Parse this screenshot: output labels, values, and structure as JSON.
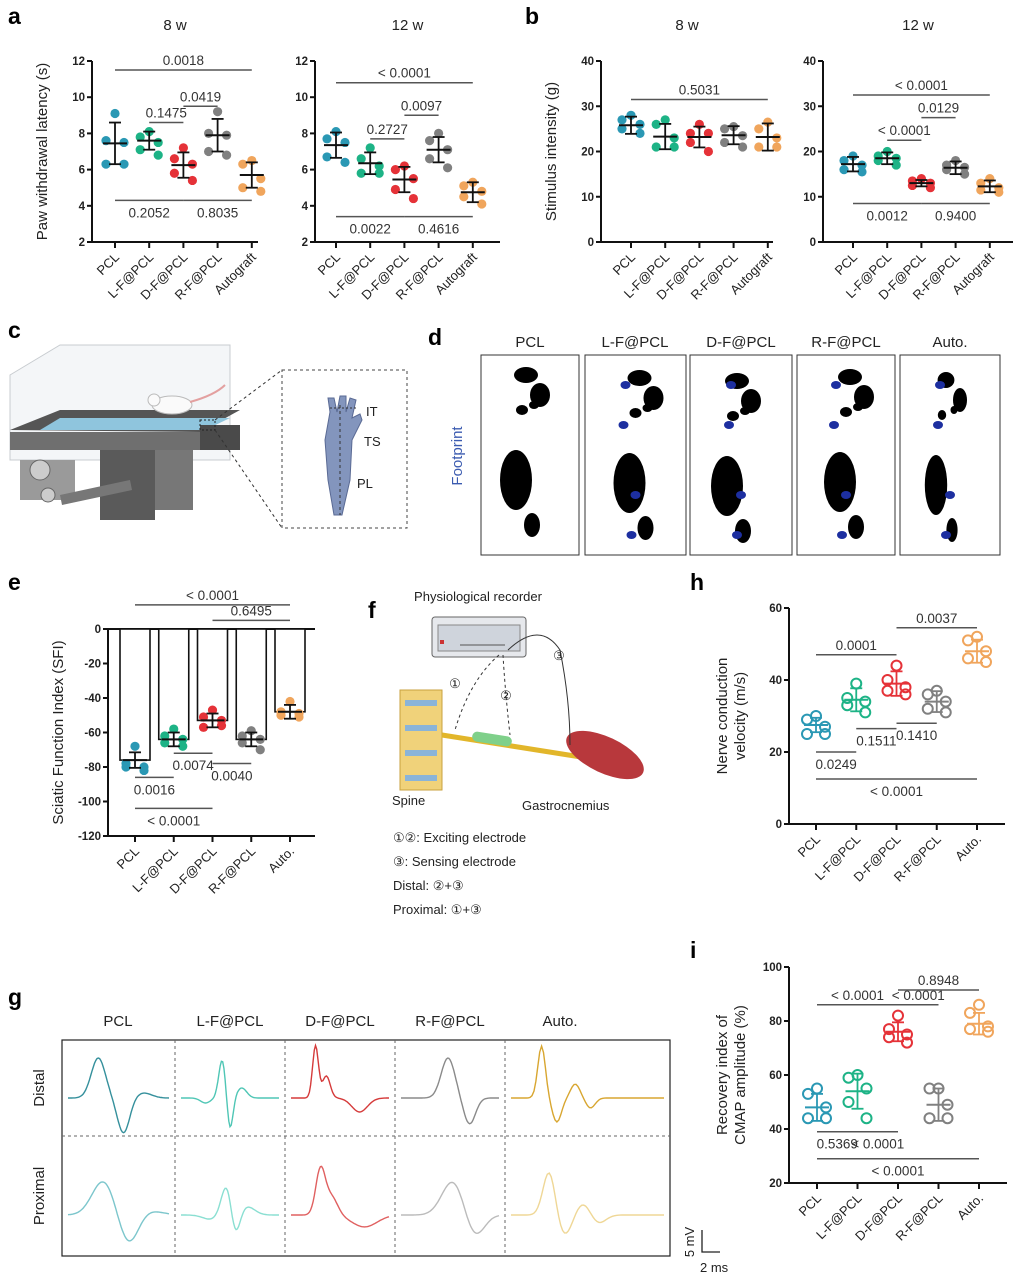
{
  "colors": {
    "PCL": "#2a98b4",
    "L-F@PCL": "#1db386",
    "D-F@PCL": "#e53238",
    "R-F@PCL": "#808080",
    "Autograft": "#f0a55c"
  },
  "panel_labels": {
    "a": "a",
    "b": "b",
    "c": "c",
    "d": "d",
    "e": "e",
    "f": "f",
    "g": "g",
    "h": "h",
    "i": "i"
  },
  "panel_c": {
    "labels": [
      "IT",
      "TS",
      "PL"
    ]
  },
  "panel_d": {
    "row_label": "Footprint",
    "titles": [
      "PCL",
      "L-F@PCL",
      "D-F@PCL",
      "R-F@PCL",
      "Auto."
    ]
  },
  "panel_f": {
    "device": "Physiological recorder",
    "electrodes": [
      "①",
      "②",
      "③"
    ],
    "spine": "Spine",
    "muscle": "Gastrocnemius",
    "legend": [
      "①②: Exciting electrode",
      "③: Sensing electrode",
      "Distal: ②+③",
      "Proximal: ①+③"
    ]
  },
  "panel_g": {
    "titles": [
      "PCL",
      "L-F@PCL",
      "D-F@PCL",
      "R-F@PCL",
      "Auto."
    ],
    "rows": [
      "Distal",
      "Proximal"
    ],
    "scale_v": "5 mV",
    "scale_h": "2 ms"
  },
  "chart_data": [
    {
      "id": "a8",
      "panel": "a",
      "type": "scatter",
      "title": "8 w",
      "ylabel": [
        "Paw withdrawal latency (s)"
      ],
      "ylim": [
        2,
        12
      ],
      "yticks": [
        2,
        4,
        6,
        8,
        10,
        12
      ],
      "categories": [
        "PCL",
        "L-F@PCL",
        "D-F@PCL",
        "R-F@PCL",
        "Autograft"
      ],
      "points": [
        [
          9.1,
          7.6,
          7.5,
          6.3,
          6.3
        ],
        [
          8.1,
          7.8,
          7.5,
          7.1,
          6.8
        ],
        [
          7.2,
          6.6,
          6.3,
          5.8,
          5.4
        ],
        [
          9.2,
          8.0,
          7.9,
          7.0,
          6.8
        ],
        [
          6.5,
          6.3,
          5.5,
          5.0,
          4.8
        ]
      ],
      "mean": [
        7.45,
        7.6,
        6.25,
        7.9,
        5.7
      ],
      "sd": [
        1.15,
        0.5,
        0.7,
        0.9,
        0.7
      ],
      "brackets": [
        {
          "from": 0,
          "to": 4,
          "y": 11.5,
          "p": "0.0018",
          "pos": "above"
        },
        {
          "from": 2,
          "to": 3,
          "y": 9.5,
          "p": "0.0419",
          "pos": "above"
        },
        {
          "from": 1,
          "to": 2,
          "y": 8.6,
          "p": "0.1475",
          "pos": "above"
        },
        {
          "from": 0,
          "to": 2,
          "y": 4.3,
          "p": "0.2052",
          "pos": "below"
        },
        {
          "from": 2,
          "to": 4,
          "y": 4.3,
          "p": "0.8035",
          "pos": "below"
        }
      ]
    },
    {
      "id": "a12",
      "panel": "a",
      "type": "scatter",
      "title": "12 w",
      "ylabel": [],
      "ylim": [
        2,
        12
      ],
      "yticks": [
        2,
        4,
        6,
        8,
        10,
        12
      ],
      "categories": [
        "PCL",
        "L-F@PCL",
        "D-F@PCL",
        "R-F@PCL",
        "Autograft"
      ],
      "points": [
        [
          8.1,
          7.7,
          7.5,
          6.7,
          6.4
        ],
        [
          7.2,
          6.6,
          6.2,
          5.8,
          5.8
        ],
        [
          6.2,
          6.0,
          5.5,
          4.9,
          4.4
        ],
        [
          8.0,
          7.6,
          7.1,
          6.6,
          6.1
        ],
        [
          5.3,
          5.1,
          4.8,
          4.5,
          4.1
        ]
      ],
      "mean": [
        7.35,
        6.35,
        5.45,
        7.1,
        4.75
      ],
      "sd": [
        0.7,
        0.6,
        0.7,
        0.7,
        0.55
      ],
      "brackets": [
        {
          "from": 0,
          "to": 4,
          "y": 10.8,
          "p": "< 0.0001",
          "pos": "above"
        },
        {
          "from": 2,
          "to": 3,
          "y": 9.0,
          "p": "0.0097",
          "pos": "above"
        },
        {
          "from": 1,
          "to": 2,
          "y": 7.7,
          "p": "0.2727",
          "pos": "above"
        },
        {
          "from": 0,
          "to": 2,
          "y": 3.4,
          "p": "0.0022",
          "pos": "below"
        },
        {
          "from": 2,
          "to": 4,
          "y": 3.4,
          "p": "0.4616",
          "pos": "below"
        }
      ]
    },
    {
      "id": "b8",
      "panel": "b",
      "type": "scatter",
      "title": "8 w",
      "ylabel": [
        "Stimulus intensity (g)"
      ],
      "ylim": [
        0,
        40
      ],
      "yticks": [
        0,
        10,
        20,
        30,
        40
      ],
      "categories": [
        "PCL",
        "L-F@PCL",
        "D-F@PCL",
        "R-F@PCL",
        "Autograft"
      ],
      "points": [
        [
          28,
          27,
          26,
          25,
          24
        ],
        [
          27,
          26,
          23,
          21,
          21
        ],
        [
          26,
          24,
          24,
          22,
          20
        ],
        [
          25.5,
          25,
          23.5,
          22,
          21
        ],
        [
          26.5,
          25,
          23,
          21,
          21
        ]
      ],
      "mean": [
        25.8,
        23.3,
        23.2,
        23.6,
        23.2
      ],
      "sd": [
        1.9,
        2.8,
        2.3,
        2.0,
        3.0
      ],
      "brackets": [
        {
          "from": 0,
          "to": 4,
          "y": 31.5,
          "p": "0.5031",
          "pos": "above"
        }
      ]
    },
    {
      "id": "b12",
      "panel": "b",
      "type": "scatter",
      "title": "12 w",
      "ylabel": [],
      "ylim": [
        0,
        40
      ],
      "yticks": [
        0,
        10,
        20,
        30,
        40
      ],
      "categories": [
        "PCL",
        "L-F@PCL",
        "D-F@PCL",
        "R-F@PCL",
        "Autograft"
      ],
      "points": [
        [
          19,
          18,
          17,
          16,
          15.5
        ],
        [
          20,
          19,
          18.5,
          18,
          17
        ],
        [
          14,
          13.5,
          13,
          12.5,
          12
        ],
        [
          18,
          17,
          16.5,
          16,
          15
        ],
        [
          14,
          13,
          12,
          11.5,
          11
        ]
      ],
      "mean": [
        17.2,
        18.5,
        13,
        16.4,
        12.3
      ],
      "sd": [
        1.6,
        1.3,
        0.7,
        1.4,
        1.3
      ],
      "brackets": [
        {
          "from": 0,
          "to": 4,
          "y": 32.5,
          "p": "< 0.0001",
          "pos": "above"
        },
        {
          "from": 2,
          "to": 3,
          "y": 27.5,
          "p": "0.0129",
          "pos": "above"
        },
        {
          "from": 1,
          "to": 2,
          "y": 22.5,
          "p": "< 0.0001",
          "pos": "above"
        },
        {
          "from": 0,
          "to": 2,
          "y": 8.5,
          "p": "0.0012",
          "pos": "below"
        },
        {
          "from": 2,
          "to": 4,
          "y": 8.5,
          "p": "0.9400",
          "pos": "below"
        }
      ]
    },
    {
      "id": "e",
      "panel": "e",
      "type": "bar",
      "title": "",
      "ylabel": [
        "Sciatic Function Index (SFI)"
      ],
      "ylim": [
        -120,
        0
      ],
      "yticks": [
        -120,
        -100,
        -80,
        -60,
        -40,
        -20,
        0
      ],
      "categories": [
        "PCL",
        "L-F@PCL",
        "D-F@PCL",
        "R-F@PCL",
        "Auto."
      ],
      "points": [
        [
          -68,
          -78,
          -80,
          -80,
          -82
        ],
        [
          -58,
          -62,
          -64,
          -66,
          -68
        ],
        [
          -47,
          -51,
          -53,
          -57,
          -56
        ],
        [
          -59,
          -62,
          -64,
          -66,
          -70
        ],
        [
          -42,
          -48,
          -49,
          -50,
          -51
        ]
      ],
      "mean": [
        -76,
        -64,
        -53,
        -64,
        -48
      ],
      "sd": [
        4.5,
        4,
        4,
        4,
        4
      ],
      "brackets": [
        {
          "from": 0,
          "to": 4,
          "y": 14,
          "p": "< 0.0001",
          "pos": "above"
        },
        {
          "from": 2,
          "to": 4,
          "y": 5,
          "p": "0.6495",
          "pos": "above"
        },
        {
          "from": 0,
          "to": 1,
          "y": -86,
          "p": "0.0016",
          "pos": "below"
        },
        {
          "from": 1,
          "to": 2,
          "y": -72,
          "p": "0.0074",
          "pos": "below"
        },
        {
          "from": 2,
          "to": 3,
          "y": -78,
          "p": "0.0040",
          "pos": "below"
        },
        {
          "from": 0,
          "to": 2,
          "y": -104,
          "p": "< 0.0001",
          "pos": "below"
        }
      ]
    },
    {
      "id": "h",
      "panel": "h",
      "type": "scatter",
      "open": true,
      "title": "",
      "ylabel": [
        "Nerve conduction",
        "velocity (m/s)"
      ],
      "ylim": [
        0,
        60
      ],
      "yticks": [
        0,
        20,
        40,
        60
      ],
      "categories": [
        "PCL",
        "L-F@PCL",
        "D-F@PCL",
        "R-F@PCL",
        "Auto."
      ],
      "points": [
        [
          30,
          29,
          27,
          25,
          25
        ],
        [
          39,
          35,
          34,
          33,
          31
        ],
        [
          44,
          40,
          38,
          37,
          36
        ],
        [
          37,
          36,
          34,
          32,
          31
        ],
        [
          52,
          51,
          48,
          46,
          45
        ]
      ],
      "mean": [
        27.5,
        34.5,
        39,
        34,
        48
      ],
      "sd": [
        2,
        3.2,
        3.4,
        2.9,
        3.2
      ],
      "brackets": [
        {
          "from": 2,
          "to": 4,
          "y": 54.5,
          "p": "0.0037",
          "pos": "above"
        },
        {
          "from": 0,
          "to": 2,
          "y": 47,
          "p": "0.0001",
          "pos": "above"
        },
        {
          "from": 1,
          "to": 2,
          "y": 26.5,
          "p": "0.1511",
          "pos": "below"
        },
        {
          "from": 2,
          "to": 3,
          "y": 28,
          "p": "0.1410",
          "pos": "below"
        },
        {
          "from": 0,
          "to": 1,
          "y": 20,
          "p": "0.0249",
          "pos": "below"
        },
        {
          "from": 0,
          "to": 4,
          "y": 12.5,
          "p": "< 0.0001",
          "pos": "below"
        }
      ]
    },
    {
      "id": "i",
      "panel": "i",
      "type": "scatter",
      "open": true,
      "title": "",
      "ylabel": [
        "Recovery index of",
        "CMAP amplitude (%)"
      ],
      "ylim": [
        20,
        100
      ],
      "yticks": [
        20,
        40,
        60,
        80,
        100
      ],
      "categories": [
        "PCL",
        "L-F@PCL",
        "D-F@PCL",
        "R-F@PCL",
        "Auto."
      ],
      "points": [
        [
          55,
          53,
          48,
          44,
          44
        ],
        [
          60,
          59,
          55,
          50,
          44
        ],
        [
          82,
          77,
          75,
          74,
          72
        ],
        [
          55,
          55,
          49,
          44,
          44
        ],
        [
          86,
          83,
          78,
          77,
          76
        ]
      ],
      "mean": [
        48,
        54,
        76,
        49,
        79
      ],
      "sd": [
        5,
        6.5,
        3.5,
        6,
        4
      ],
      "brackets": [
        {
          "from": 0,
          "to": 2,
          "y": 86,
          "p": "< 0.0001",
          "pos": "above"
        },
        {
          "from": 2,
          "to": 3,
          "y": 86,
          "p": "< 0.0001",
          "pos": "above"
        },
        {
          "from": 2,
          "to": 4,
          "y": 91.5,
          "p": "0.8948",
          "pos": "above"
        },
        {
          "from": 0,
          "to": 1,
          "y": 39,
          "p": "0.5369",
          "pos": "below"
        },
        {
          "from": 1,
          "to": 2,
          "y": 39,
          "p": "< 0.0001",
          "pos": "below"
        },
        {
          "from": 0,
          "to": 4,
          "y": 29,
          "p": "< 0.0001",
          "pos": "below"
        }
      ]
    }
  ]
}
